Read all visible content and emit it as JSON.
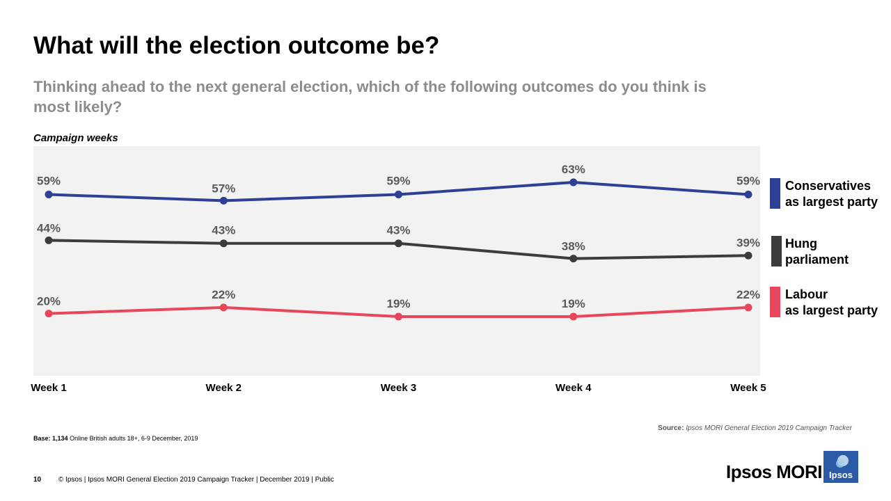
{
  "page": {
    "title": "What will the election outcome be?",
    "subtitle": "Thinking ahead to the next general election, which of the following outcomes do you think is most likely?",
    "weeks_label": "Campaign weeks"
  },
  "chart_data": {
    "type": "line",
    "categories": [
      "Week 1",
      "Week 2",
      "Week 3",
      "Week 4",
      "Week 5"
    ],
    "ylim": [
      0,
      100
    ],
    "grid": false,
    "unit": "%",
    "series": [
      {
        "name": "Conservatives as largest party",
        "label_lines": [
          "Conservatives",
          "as largest party"
        ],
        "color": "#2e3f96",
        "values": [
          59,
          57,
          59,
          63,
          59
        ]
      },
      {
        "name": "Hung parliament",
        "label_lines": [
          "Hung",
          "parliament"
        ],
        "color": "#3c3c3c",
        "values": [
          44,
          43,
          43,
          38,
          39
        ]
      },
      {
        "name": "Labour as largest party",
        "label_lines": [
          "Labour",
          "as largest party"
        ],
        "color": "#e8465a",
        "values": [
          20,
          22,
          19,
          19,
          22
        ]
      }
    ],
    "plot_background": "#f2f2f2"
  },
  "footer": {
    "base_label": "Base:",
    "base_count": "1,134",
    "base_text": "Online British adults 18+, 6-9 December, 2019",
    "source_label": "Source:",
    "source_text": "Ipsos MORI General Election 2019 Campaign Tracker",
    "page_number": "10",
    "copyright": "© Ipsos | Ipsos MORI General Election 2019 Campaign Tracker | December 2019 | Public",
    "brand": "Ipsos MORI",
    "logo_text": "Ipsos",
    "logo_color": "#2b5aa6"
  }
}
